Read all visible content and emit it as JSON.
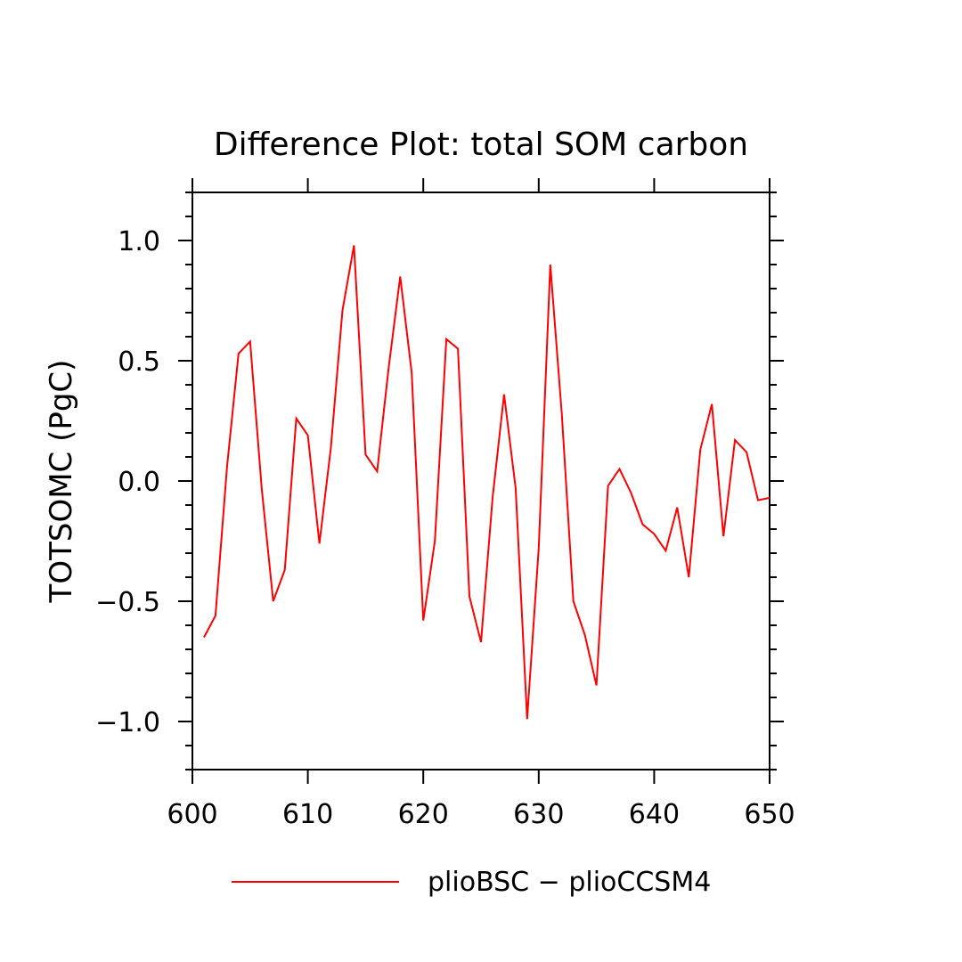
{
  "chart_data": {
    "type": "line",
    "title": "Difference Plot: total SOM carbon",
    "xlabel": "",
    "ylabel": "TOTSOMC   (PgC)",
    "xlim": [
      600,
      650
    ],
    "ylim": [
      -1.2,
      1.2
    ],
    "x_ticks": [
      600,
      610,
      620,
      630,
      640,
      650
    ],
    "x_tick_labels": [
      "600",
      "610",
      "620",
      "630",
      "640",
      "650"
    ],
    "y_ticks": [
      -1.0,
      -0.5,
      0.0,
      0.5,
      1.0
    ],
    "y_tick_labels": [
      "−1.0",
      "−0.5",
      "0.0",
      "0.5",
      "1.0"
    ],
    "grid": false,
    "legend_position": "bottom",
    "series": [
      {
        "name": "plioBSC − plioCCSM4",
        "color": "#ff0000",
        "x": [
          601,
          602,
          603,
          604,
          605,
          606,
          607,
          608,
          609,
          610,
          611,
          612,
          613,
          614,
          615,
          616,
          617,
          618,
          619,
          620,
          621,
          622,
          623,
          624,
          625,
          626,
          627,
          628,
          629,
          630,
          631,
          632,
          633,
          634,
          635,
          636,
          637,
          638,
          639,
          640,
          641,
          642,
          643,
          644,
          645,
          646,
          647,
          648,
          649,
          650
        ],
        "y": [
          -0.65,
          -0.56,
          0.06,
          0.53,
          0.58,
          -0.03,
          -0.5,
          -0.37,
          0.26,
          0.19,
          -0.26,
          0.14,
          0.71,
          0.98,
          0.11,
          0.04,
          0.47,
          0.85,
          0.45,
          -0.58,
          -0.25,
          0.59,
          0.55,
          -0.48,
          -0.67,
          -0.07,
          0.36,
          -0.03,
          -0.99,
          -0.28,
          0.9,
          0.28,
          -0.5,
          -0.64,
          -0.85,
          -0.02,
          0.05,
          -0.05,
          -0.18,
          -0.22,
          -0.29,
          -0.11,
          -0.4,
          0.13,
          0.32,
          -0.23,
          0.17,
          0.12,
          -0.08,
          -0.07
        ]
      }
    ]
  }
}
